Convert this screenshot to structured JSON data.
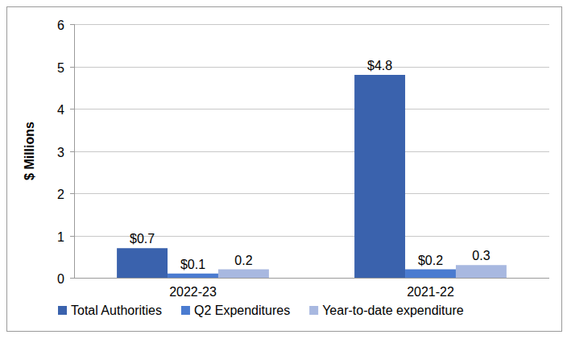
{
  "chart_data": {
    "type": "bar",
    "y_label": "$ Millions",
    "categories": [
      "2022-23",
      "2021-22"
    ],
    "series": [
      {
        "name": "Total Authorities",
        "color": "#3a62ad",
        "values": [
          0.7,
          4.8
        ],
        "value_labels": [
          "$0.7",
          "$4.8"
        ]
      },
      {
        "name": "Q2 Expenditures",
        "color": "#4a7bd0",
        "values": [
          0.1,
          0.2
        ],
        "value_labels": [
          "$0.1",
          "$0.2"
        ]
      },
      {
        "name": "Year-to-date expenditure",
        "color": "#a8b8e0",
        "values": [
          0.2,
          0.3
        ],
        "value_labels": [
          "0.2",
          "0.3"
        ]
      }
    ],
    "ylim": [
      0,
      6
    ],
    "yticks": [
      0,
      1,
      2,
      3,
      4,
      5,
      6
    ],
    "grid": true,
    "legend": "bottom",
    "data_labels": true
  }
}
